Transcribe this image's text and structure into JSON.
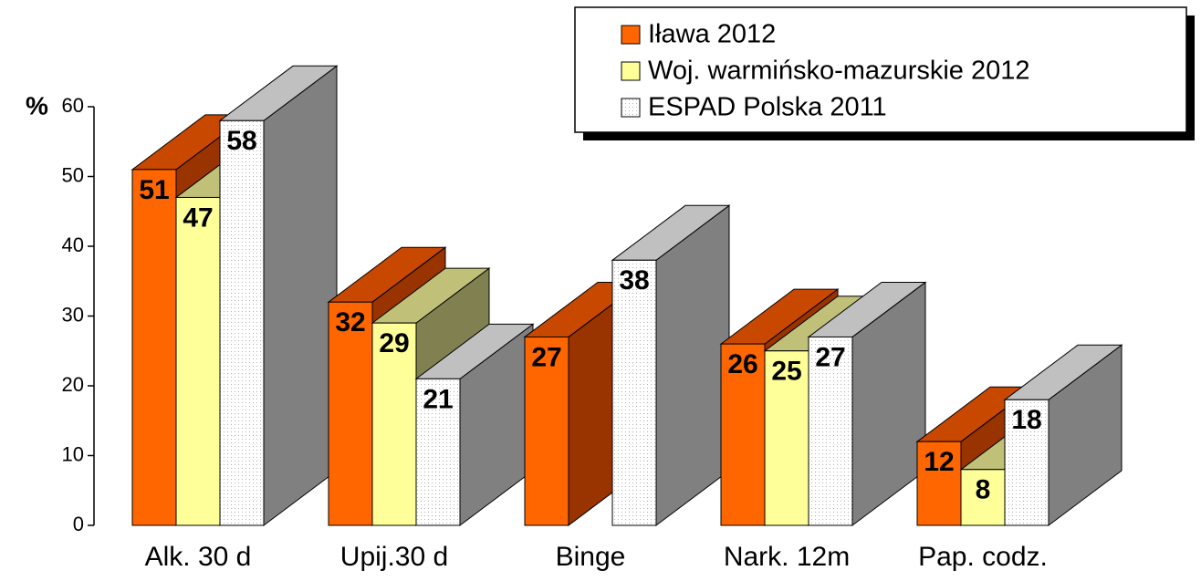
{
  "chart_data": {
    "type": "bar3d",
    "ylabel": "%",
    "categories": [
      "Alk. 30 d",
      "Upij.30 d",
      "Binge",
      "Nark. 12m",
      "Pap. codz."
    ],
    "series": [
      {
        "name": "Iława 2012",
        "color": "#ff6600",
        "values": [
          51,
          32,
          27,
          26,
          12
        ]
      },
      {
        "name": "Woj. warmińsko-mazurskie 2012",
        "color": "#ffff99",
        "values": [
          47,
          29,
          null,
          25,
          8
        ]
      },
      {
        "name": "ESPAD Polska 2011",
        "color": "#ffffff",
        "values": [
          58,
          21,
          38,
          27,
          18
        ]
      }
    ],
    "ylim": [
      0,
      60
    ],
    "yticks": [
      0,
      10,
      20,
      30,
      40,
      50,
      60
    ],
    "legend": "upper right"
  }
}
